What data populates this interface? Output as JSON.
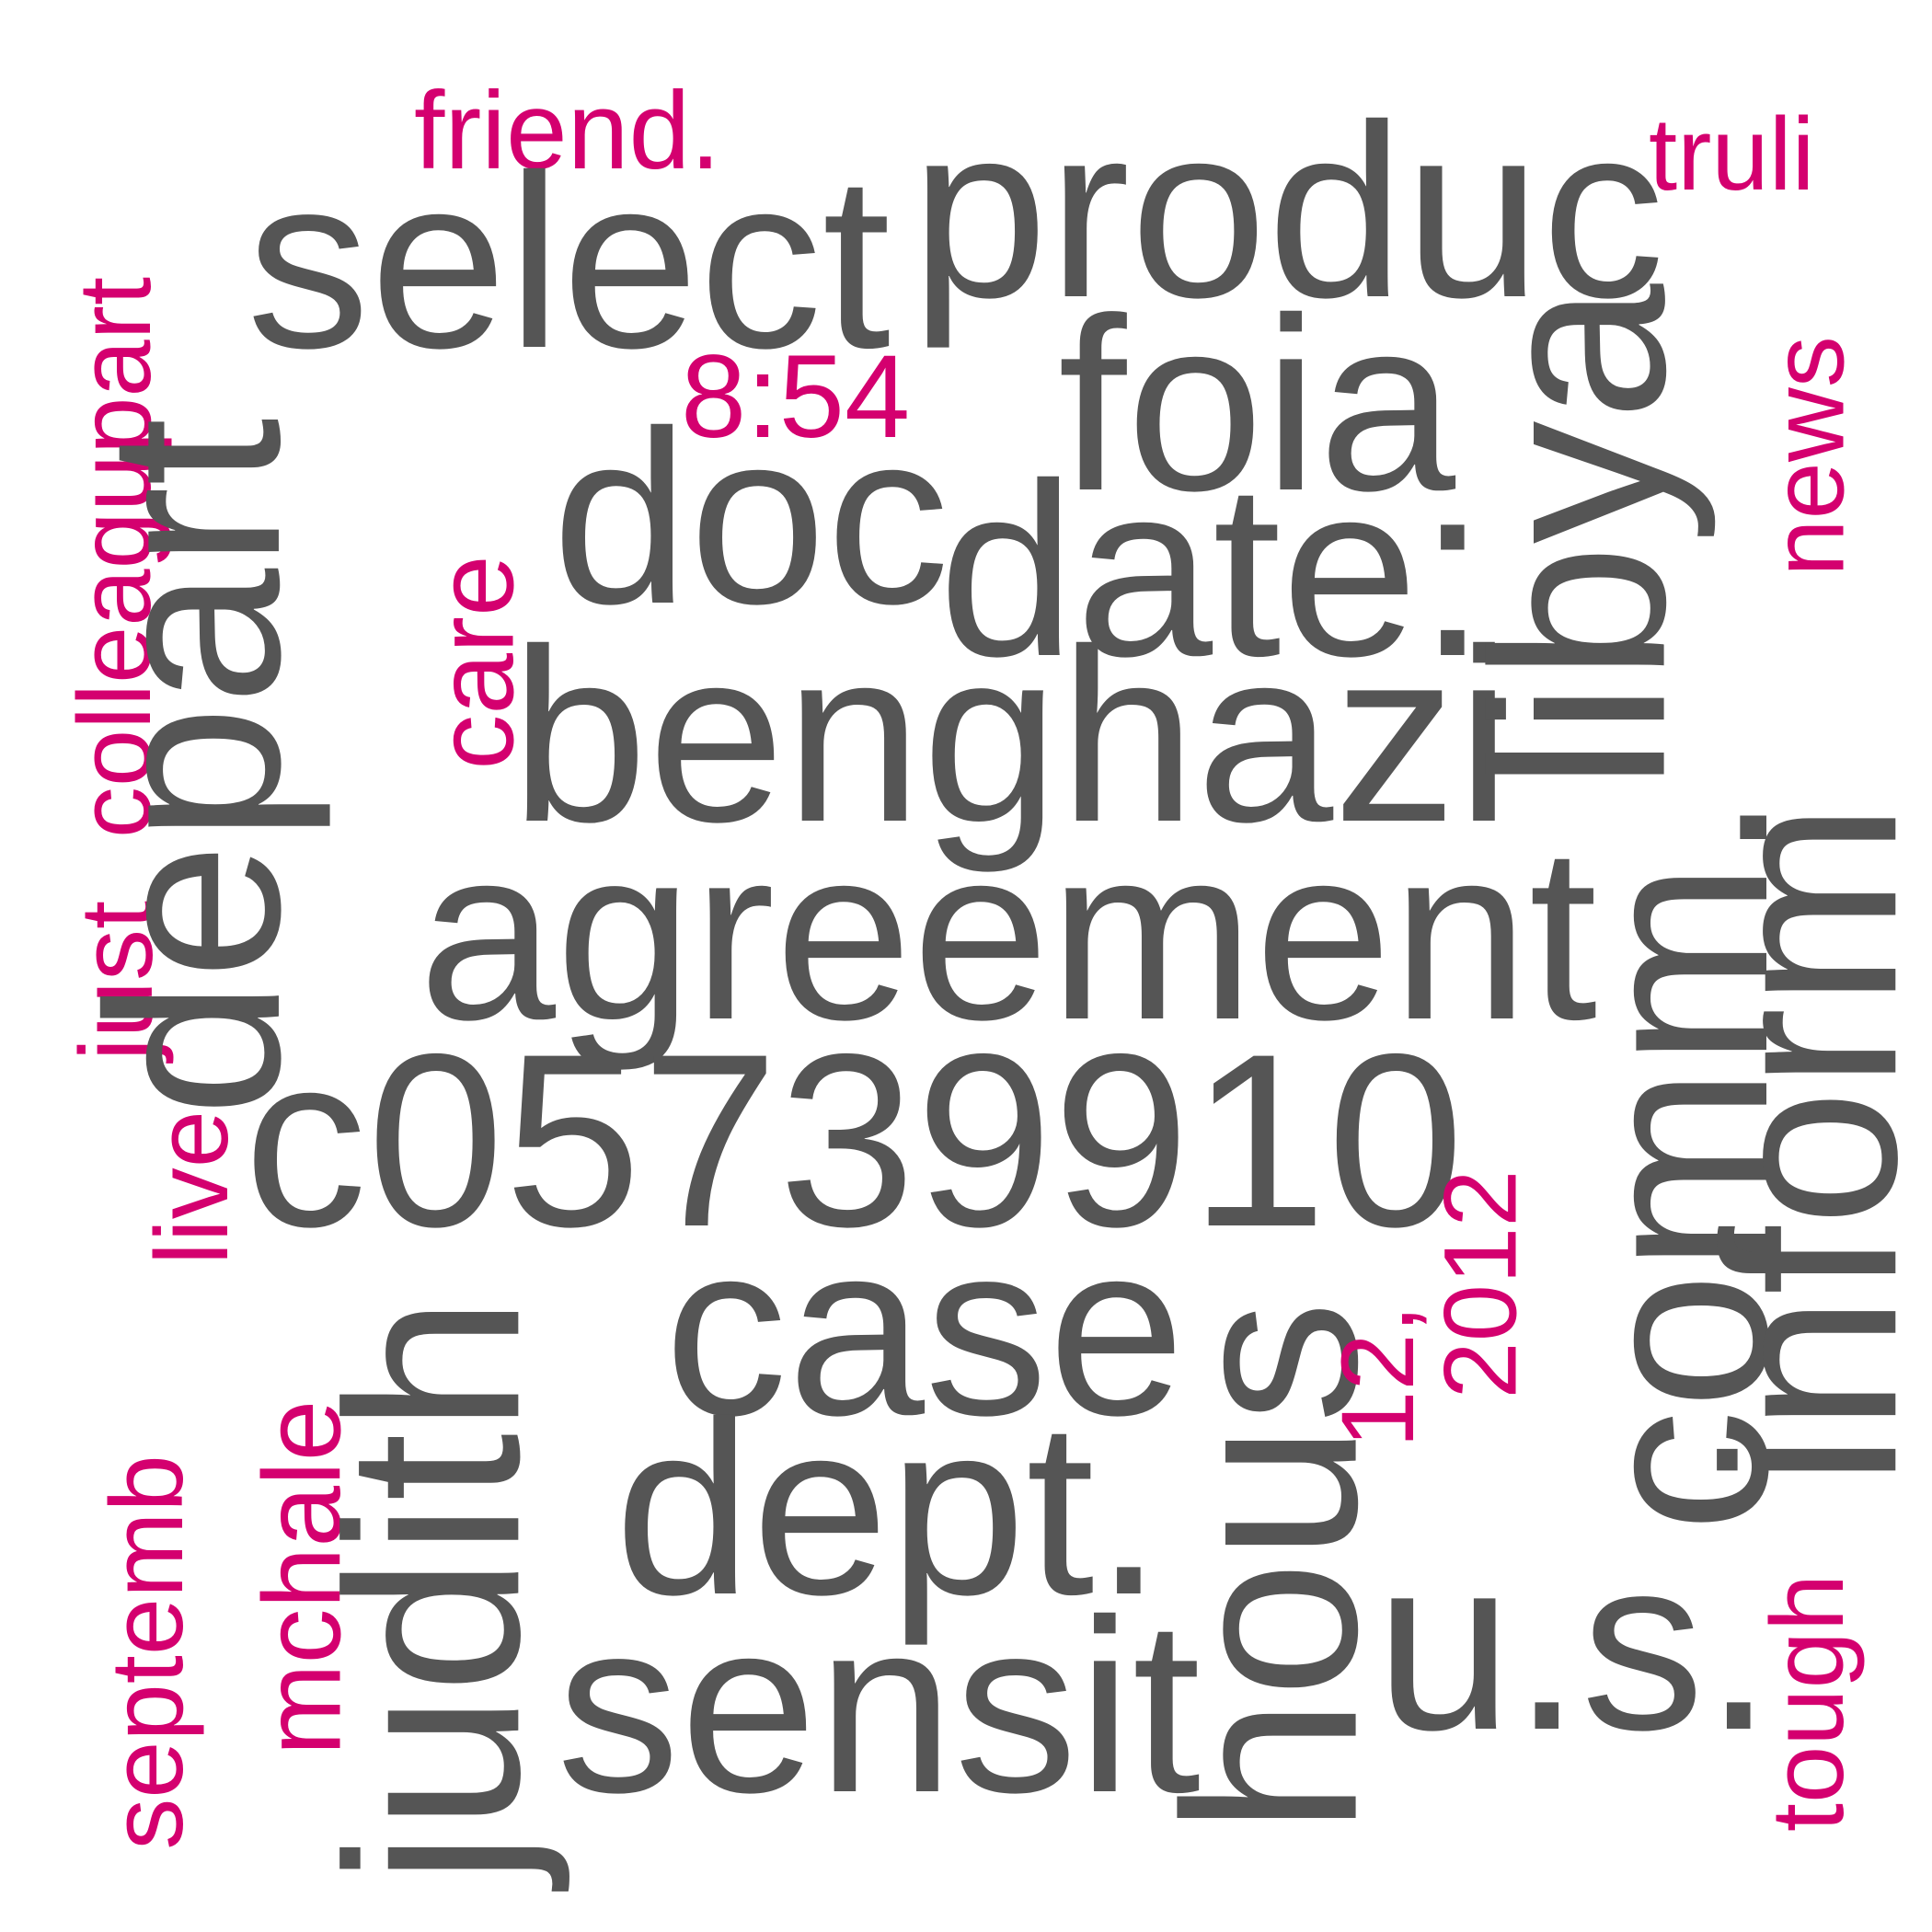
{
  "colors": {
    "primary": "#555555",
    "accent": "#d4006f",
    "background": "#ffffff"
  },
  "words": [
    {
      "text": "friend.",
      "emphasis": "accent",
      "orientation": "horizontal"
    },
    {
      "text": "truli",
      "emphasis": "accent",
      "orientation": "horizontal"
    },
    {
      "text": "produc",
      "emphasis": "primary",
      "orientation": "horizontal"
    },
    {
      "text": "select",
      "emphasis": "primary",
      "orientation": "horizontal"
    },
    {
      "text": "8:54",
      "emphasis": "accent",
      "orientation": "horizontal"
    },
    {
      "text": "foia",
      "emphasis": "primary",
      "orientation": "horizontal"
    },
    {
      "text": "doc",
      "emphasis": "primary",
      "orientation": "horizontal"
    },
    {
      "text": "date:",
      "emphasis": "primary",
      "orientation": "horizontal"
    },
    {
      "text": "benghazi",
      "emphasis": "primary",
      "orientation": "horizontal"
    },
    {
      "text": "agreement",
      "emphasis": "primary",
      "orientation": "horizontal"
    },
    {
      "text": "c05739910",
      "emphasis": "primary",
      "orientation": "horizontal"
    },
    {
      "text": "case",
      "emphasis": "primary",
      "orientation": "horizontal"
    },
    {
      "text": "dept.",
      "emphasis": "primary",
      "orientation": "horizontal"
    },
    {
      "text": "sensit",
      "emphasis": "primary",
      "orientation": "horizontal"
    },
    {
      "text": "u.s.",
      "emphasis": "primary",
      "orientation": "horizontal"
    },
    {
      "text": "colleagupart",
      "emphasis": "accent",
      "orientation": "vertical"
    },
    {
      "text": "just",
      "emphasis": "accent",
      "orientation": "vertical"
    },
    {
      "text": "depart",
      "emphasis": "primary",
      "orientation": "vertical"
    },
    {
      "text": "care",
      "emphasis": "accent",
      "orientation": "vertical"
    },
    {
      "text": "libya",
      "emphasis": "primary",
      "orientation": "vertical"
    },
    {
      "text": "news",
      "emphasis": "accent",
      "orientation": "vertical"
    },
    {
      "text": "comm.",
      "emphasis": "primary",
      "orientation": "vertical"
    },
    {
      "text": "inform",
      "emphasis": "primary",
      "orientation": "vertical"
    },
    {
      "text": "live",
      "emphasis": "accent",
      "orientation": "vertical"
    },
    {
      "text": "septemb",
      "emphasis": "accent",
      "orientation": "vertical"
    },
    {
      "text": "mchale",
      "emphasis": "accent",
      "orientation": "vertical"
    },
    {
      "text": "judith",
      "emphasis": "primary",
      "orientation": "vertical"
    },
    {
      "text": "hous",
      "emphasis": "primary",
      "orientation": "vertical"
    },
    {
      "text": "12,",
      "emphasis": "accent",
      "orientation": "vertical"
    },
    {
      "text": "2012",
      "emphasis": "accent",
      "orientation": "vertical"
    },
    {
      "text": "tough",
      "emphasis": "accent",
      "orientation": "vertical"
    }
  ]
}
